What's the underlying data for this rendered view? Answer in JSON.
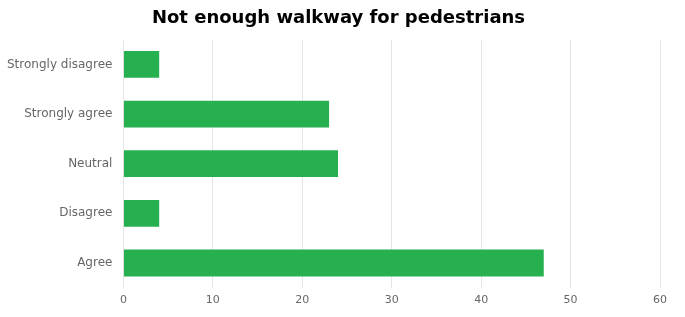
{
  "chart_data": {
    "type": "bar",
    "orientation": "horizontal",
    "title": "Not enough walkway for pedestrians",
    "categories": [
      "Strongly disagree",
      "Strongly agree",
      "Neutral",
      "Disagree",
      "Agree"
    ],
    "values": [
      4,
      23,
      24,
      4,
      47
    ],
    "color": "#26b050",
    "xlim": [
      0,
      60
    ],
    "xticks": [
      0,
      10,
      20,
      30,
      40,
      50,
      60
    ],
    "grid": true
  }
}
